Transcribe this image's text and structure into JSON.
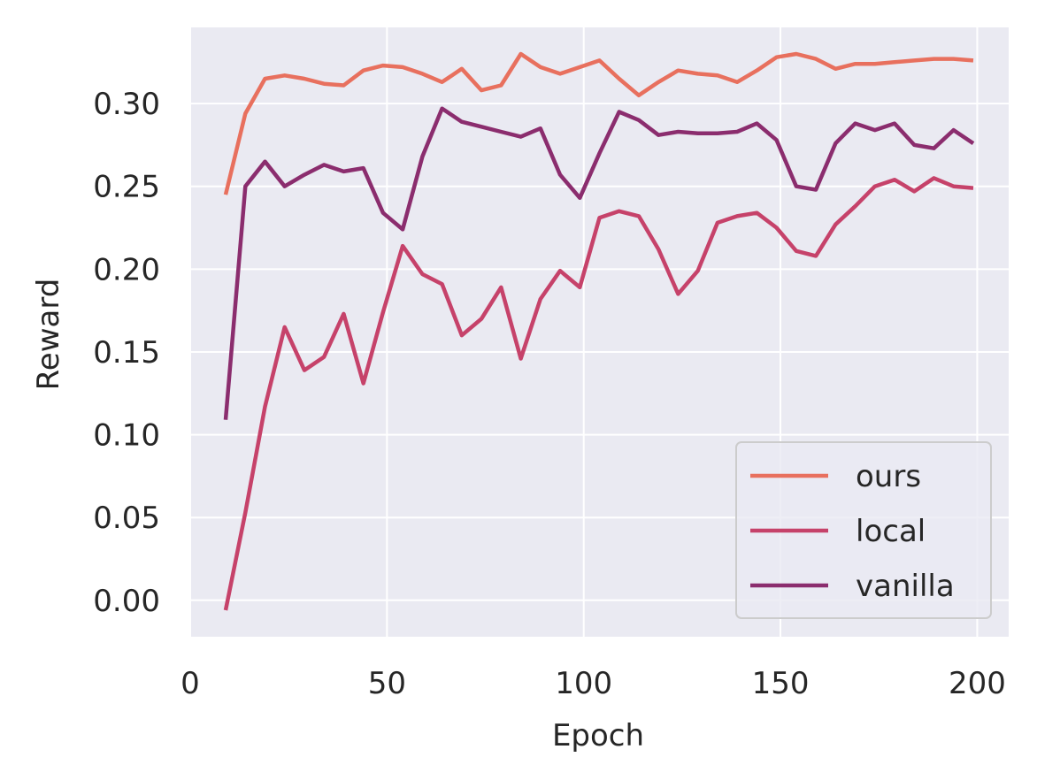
{
  "chart_data": {
    "type": "line",
    "xlabel": "Epoch",
    "ylabel": "Reward",
    "xlim": [
      0,
      208
    ],
    "ylim": [
      -0.022,
      0.346
    ],
    "xticks": [
      0,
      50,
      100,
      150,
      200
    ],
    "xtick_labels": [
      "0",
      "50",
      "100",
      "150",
      "200"
    ],
    "yticks": [
      0.0,
      0.05,
      0.1,
      0.15,
      0.2,
      0.25,
      0.3
    ],
    "ytick_labels": [
      "0.00",
      "0.05",
      "0.10",
      "0.15",
      "0.20",
      "0.25",
      "0.30"
    ],
    "grid": true,
    "legend_position": "bottom-right",
    "colors": {
      "background": "#eaeaf2",
      "grid": "#ffffff",
      "legend_bg": "#eaeaf2",
      "legend_border": "#cccccc"
    },
    "x": [
      9,
      14,
      19,
      24,
      29,
      34,
      39,
      44,
      49,
      54,
      59,
      64,
      69,
      74,
      79,
      84,
      89,
      94,
      99,
      104,
      109,
      114,
      119,
      124,
      129,
      134,
      139,
      144,
      149,
      154,
      159,
      164,
      169,
      174,
      179,
      184,
      189,
      194,
      199
    ],
    "series": [
      {
        "name": "ours",
        "color": "#e8705e",
        "values": [
          0.245,
          0.294,
          0.315,
          0.317,
          0.315,
          0.312,
          0.311,
          0.32,
          0.323,
          0.322,
          0.318,
          0.313,
          0.321,
          0.308,
          0.311,
          0.33,
          0.322,
          0.318,
          0.322,
          0.326,
          0.315,
          0.305,
          0.313,
          0.32,
          0.318,
          0.317,
          0.313,
          0.32,
          0.328,
          0.33,
          0.327,
          0.321,
          0.324,
          0.324,
          0.325,
          0.326,
          0.327,
          0.327,
          0.326
        ]
      },
      {
        "name": "local",
        "color": "#c6426a",
        "values": [
          -0.006,
          0.053,
          0.117,
          0.165,
          0.139,
          0.147,
          0.173,
          0.131,
          0.174,
          0.214,
          0.197,
          0.191,
          0.16,
          0.17,
          0.189,
          0.146,
          0.182,
          0.199,
          0.189,
          0.231,
          0.235,
          0.232,
          0.212,
          0.185,
          0.199,
          0.228,
          0.232,
          0.234,
          0.225,
          0.211,
          0.208,
          0.227,
          0.238,
          0.25,
          0.254,
          0.247,
          0.255,
          0.25,
          0.249
        ]
      },
      {
        "name": "vanilla",
        "color": "#8b2d6e",
        "values": [
          0.109,
          0.25,
          0.265,
          0.25,
          0.257,
          0.263,
          0.259,
          0.261,
          0.234,
          0.224,
          0.268,
          0.297,
          0.289,
          0.286,
          0.283,
          0.28,
          0.285,
          0.257,
          0.243,
          0.27,
          0.295,
          0.29,
          0.281,
          0.283,
          0.282,
          0.282,
          0.283,
          0.288,
          0.278,
          0.25,
          0.248,
          0.276,
          0.288,
          0.284,
          0.288,
          0.275,
          0.273,
          0.284,
          0.276
        ]
      }
    ]
  }
}
